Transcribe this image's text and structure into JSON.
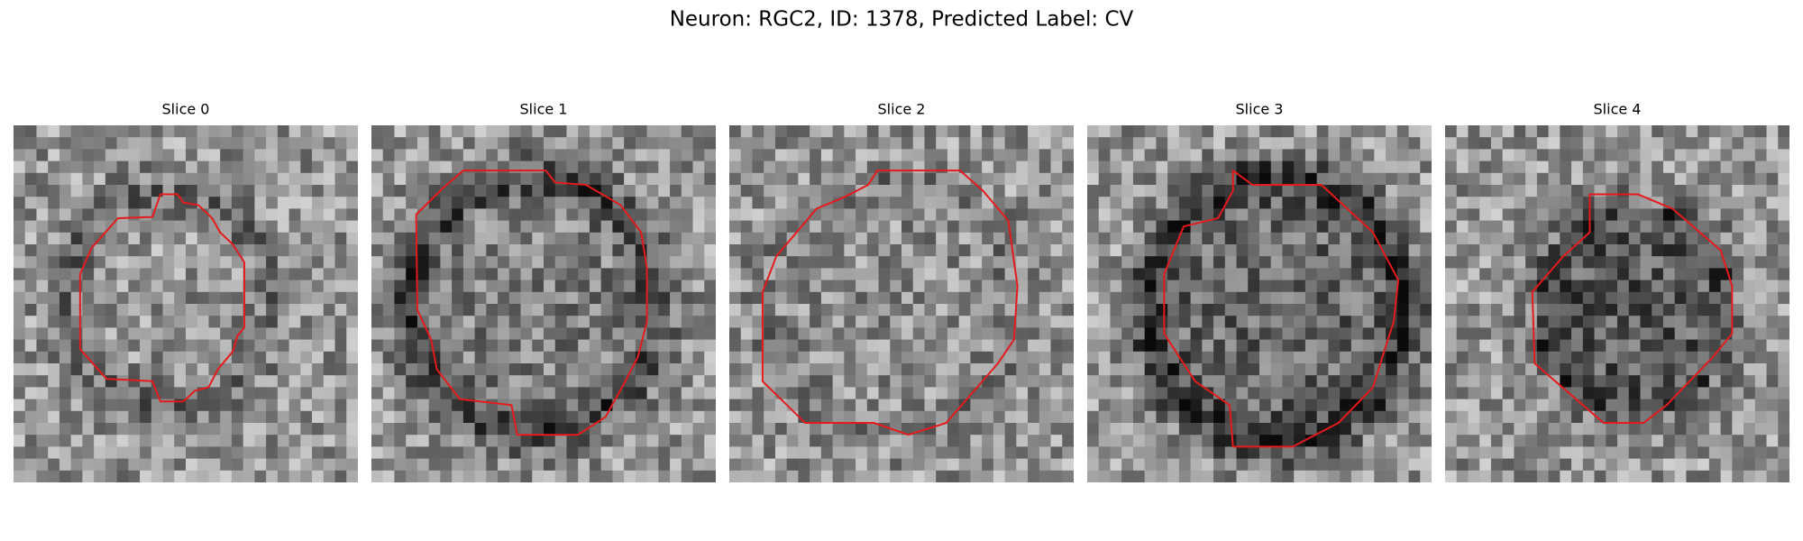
{
  "figure": {
    "title": "Neuron: RGC2, ID: 1378, Predicted Label: CV",
    "panels": [
      {
        "title": "Slice 0"
      },
      {
        "title": "Slice 1"
      },
      {
        "title": "Slice 2"
      },
      {
        "title": "Slice 3"
      },
      {
        "title": "Slice 4"
      }
    ]
  }
}
